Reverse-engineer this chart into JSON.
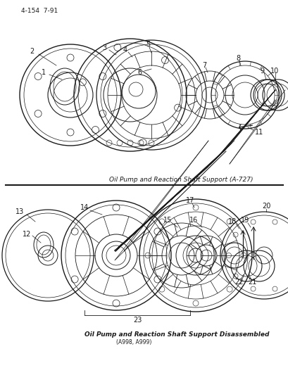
{
  "title_top": "Oil Pump and Reaction Shaft Support (A-727)",
  "title_bottom": "Oil Pump and Reaction Shaft Support Disassembled",
  "subtitle_bottom": "(A998, A999)",
  "page_ref": "4-154  7-91",
  "background_color": "#ffffff",
  "line_color": "#1a1a1a",
  "text_color": "#1a1a1a",
  "fig_w": 4.1,
  "fig_h": 5.33,
  "dpi": 100
}
